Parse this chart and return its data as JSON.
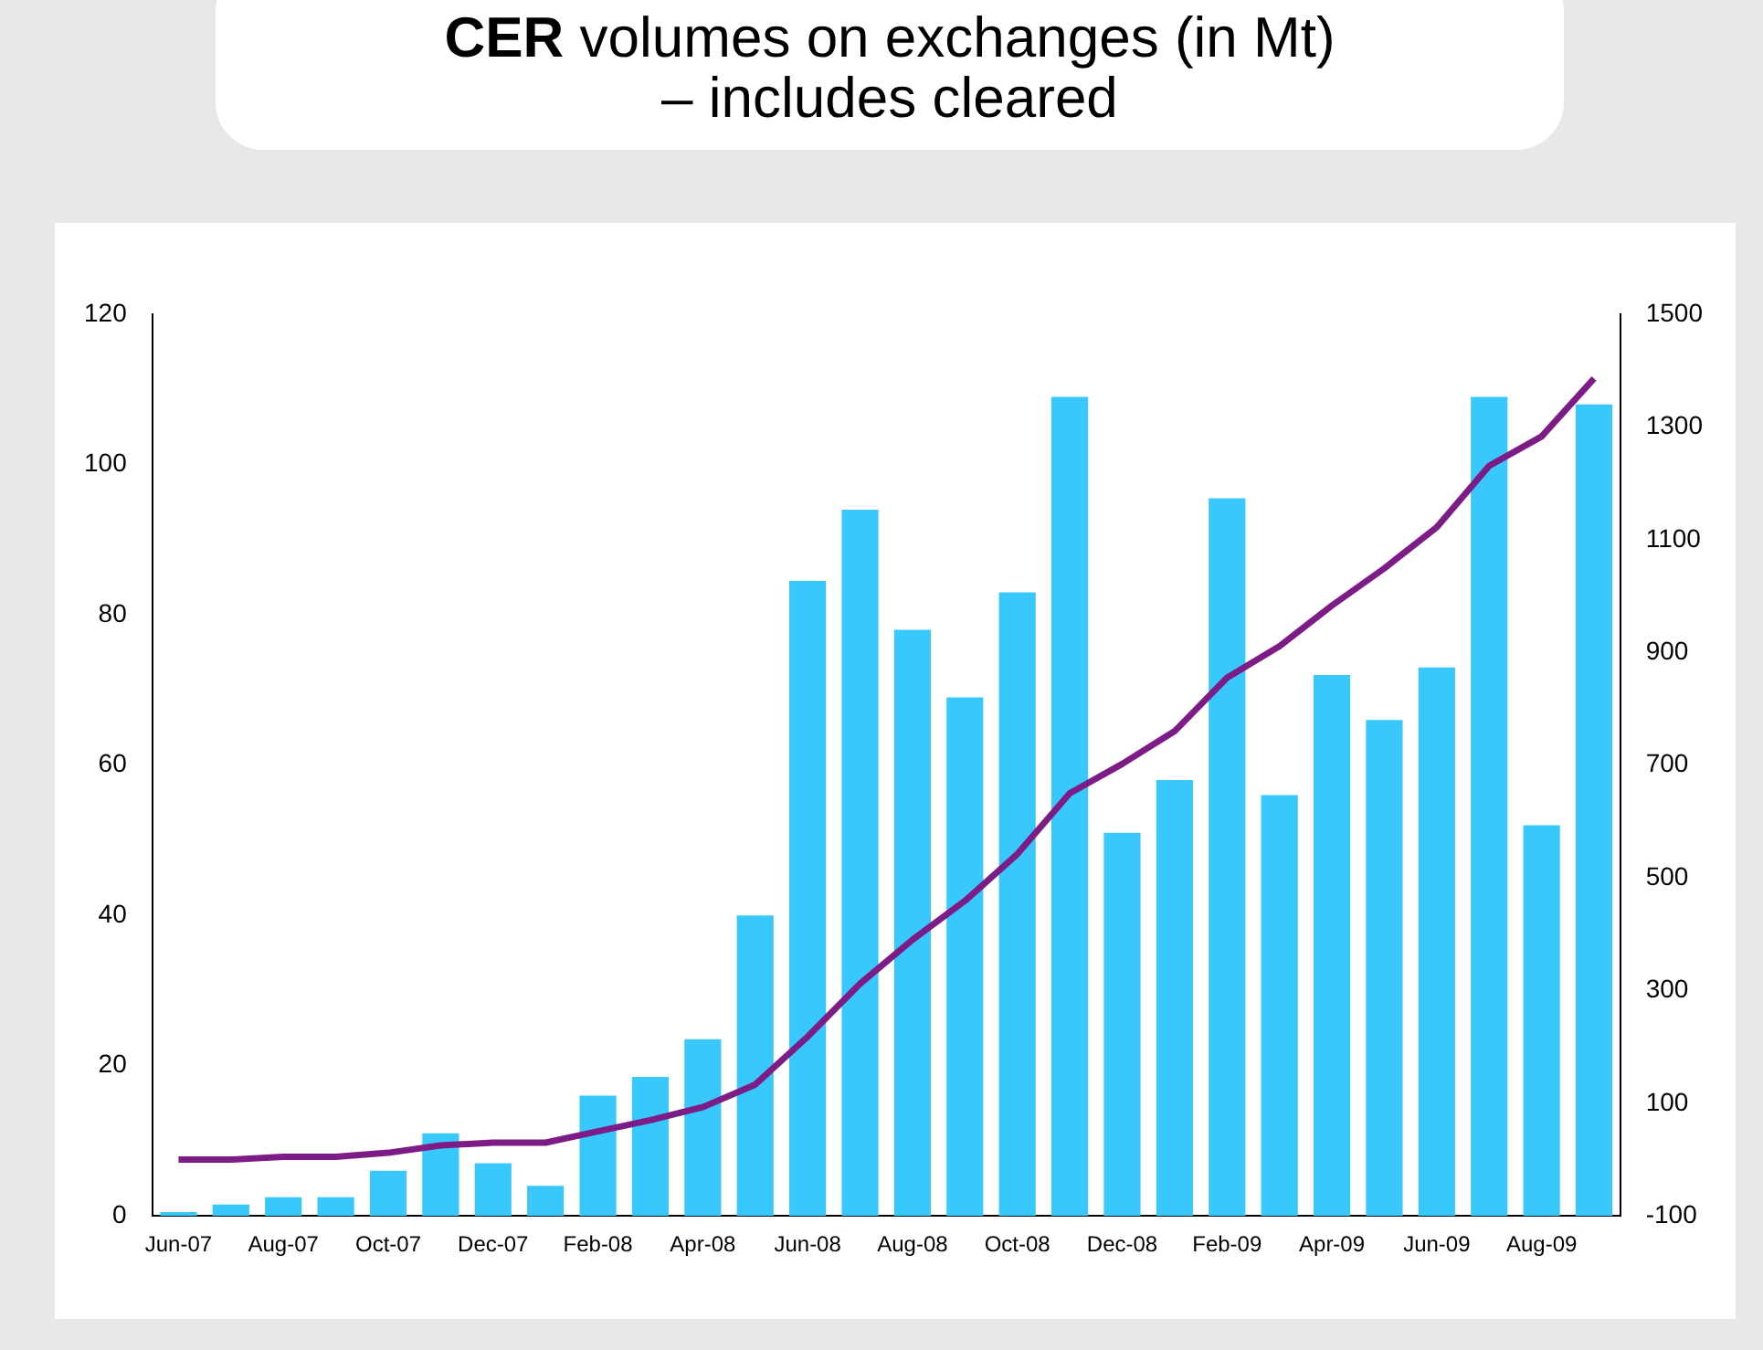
{
  "chart_data": {
    "type": "bar",
    "title": "CER volumes on exchanges (in Mt) – includes cleared",
    "categories": [
      "Jun-07",
      null,
      "Aug-07",
      null,
      "Oct-07",
      null,
      "Dec-07",
      null,
      "Feb-08",
      null,
      "Apr-08",
      null,
      "Jun-08",
      null,
      "Aug-08",
      null,
      "Oct-08",
      null,
      "Dec-08",
      null,
      "Feb-09",
      null,
      "Apr-09",
      null,
      "Jun-09",
      null,
      "Aug-09",
      null
    ],
    "series": [
      {
        "color": "#38c8fb",
        "values": [
          0.5,
          1.5,
          2.5,
          2.5,
          6,
          11,
          7,
          4,
          16,
          18.5,
          23.5,
          40,
          84.5,
          94,
          78,
          69,
          83,
          109,
          51,
          58,
          95.5,
          56,
          72,
          66,
          73,
          109,
          52,
          108
        ]
      },
      {
        "type": "line",
        "axis": "y2",
        "color": "#7d1c86",
        "values": [
          0,
          0,
          5,
          5,
          12,
          25,
          30,
          30,
          50,
          70,
          93,
          133,
          218,
          312,
          390,
          459,
          542,
          650,
          702,
          760,
          855,
          911,
          983,
          1049,
          1122,
          1231,
          1283,
          1386
        ]
      }
    ],
    "ylim": [
      0,
      120
    ],
    "yticks": [
      0,
      20,
      40,
      60,
      80,
      100,
      120
    ],
    "y2lim": [
      -100,
      1500
    ],
    "y2ticks": [
      -100,
      100,
      300,
      500,
      700,
      900,
      1100,
      1300,
      1500
    ],
    "grid": false,
    "legend": false,
    "marker": "none",
    "line_style": "solid"
  }
}
